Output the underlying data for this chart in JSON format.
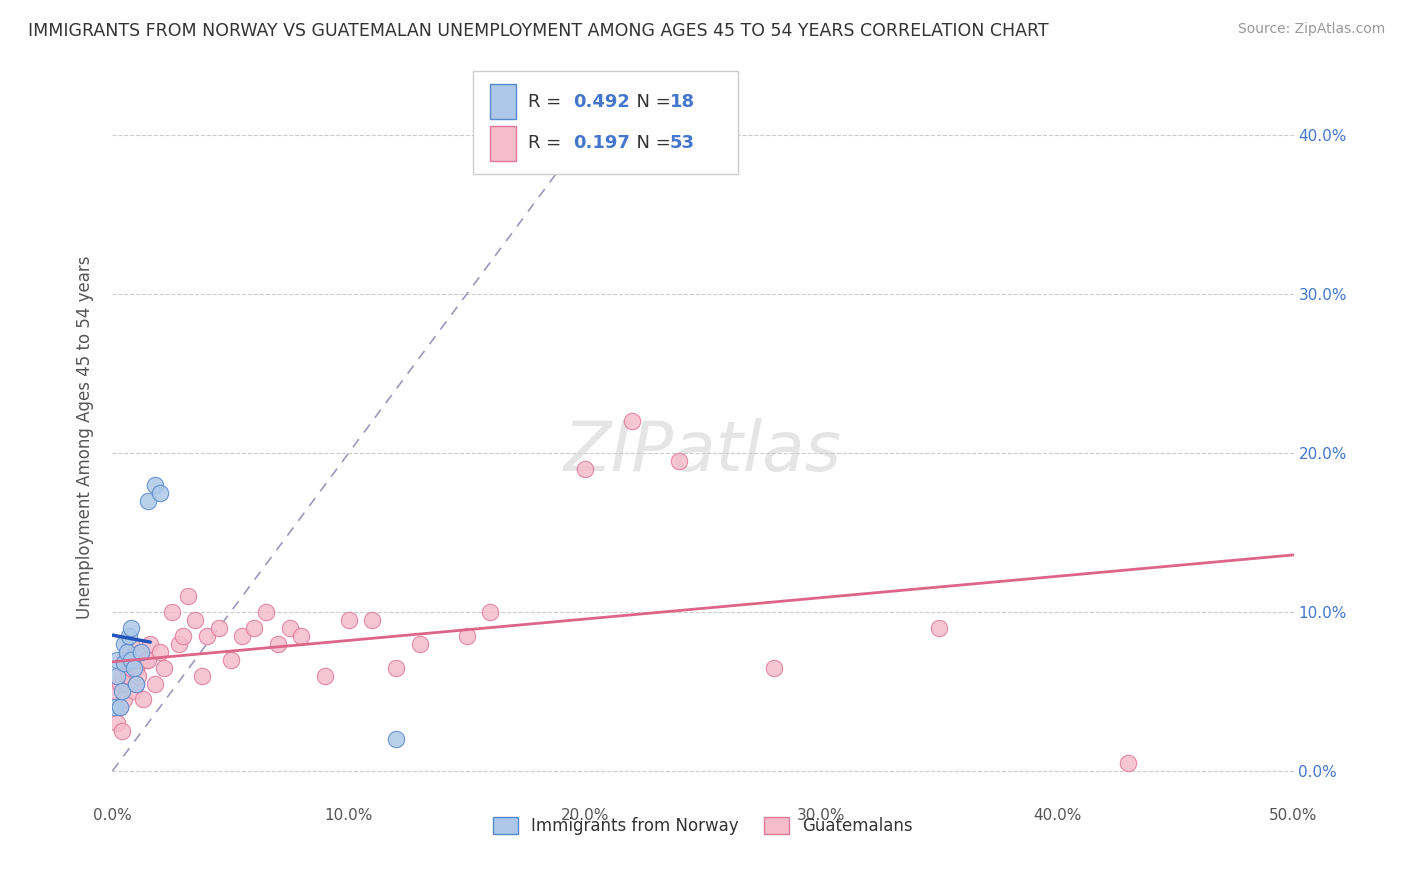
{
  "title": "IMMIGRANTS FROM NORWAY VS GUATEMALAN UNEMPLOYMENT AMONG AGES 45 TO 54 YEARS CORRELATION CHART",
  "source": "Source: ZipAtlas.com",
  "ylabel": "Unemployment Among Ages 45 to 54 years",
  "xlim": [
    0.0,
    0.5
  ],
  "ylim": [
    -0.02,
    0.44
  ],
  "xticks": [
    0.0,
    0.1,
    0.2,
    0.3,
    0.4,
    0.5
  ],
  "xtick_labels": [
    "0.0%",
    "10.0%",
    "20.0%",
    "30.0%",
    "40.0%",
    "50.0%"
  ],
  "yticks": [
    0.0,
    0.1,
    0.2,
    0.3,
    0.4
  ],
  "ytick_labels_right": [
    "0.0%",
    "10.0%",
    "20.0%",
    "30.0%",
    "40.0%"
  ],
  "background_color": "#ffffff",
  "legend_R_norway": "0.492",
  "legend_N_norway": "18",
  "legend_R_guatemalan": "0.197",
  "legend_N_guatemalan": "53",
  "norway_color": "#adc8e8",
  "norway_edge_color": "#5588cc",
  "guatemalan_color": "#f5bccb",
  "guatemalan_edge_color": "#e07898",
  "norway_line_color": "#2255bb",
  "guatemalan_line_color": "#dd6688",
  "diagonal_line_color": "#9999bb",
  "norway_scatter_x": [
    0.001,
    0.002,
    0.002,
    0.003,
    0.004,
    0.005,
    0.005,
    0.006,
    0.007,
    0.008,
    0.008,
    0.009,
    0.01,
    0.012,
    0.015,
    0.018,
    0.02,
    0.12
  ],
  "norway_scatter_y": [
    0.04,
    0.06,
    0.07,
    0.04,
    0.05,
    0.068,
    0.08,
    0.075,
    0.085,
    0.09,
    0.07,
    0.065,
    0.055,
    0.075,
    0.17,
    0.18,
    0.175,
    0.02
  ],
  "guatemalan_scatter_x": [
    0.001,
    0.002,
    0.003,
    0.003,
    0.004,
    0.004,
    0.005,
    0.005,
    0.006,
    0.006,
    0.007,
    0.008,
    0.008,
    0.009,
    0.01,
    0.01,
    0.011,
    0.012,
    0.013,
    0.014,
    0.015,
    0.016,
    0.018,
    0.02,
    0.022,
    0.025,
    0.028,
    0.03,
    0.032,
    0.035,
    0.038,
    0.04,
    0.045,
    0.05,
    0.055,
    0.06,
    0.065,
    0.07,
    0.075,
    0.08,
    0.09,
    0.1,
    0.11,
    0.12,
    0.13,
    0.15,
    0.16,
    0.2,
    0.22,
    0.24,
    0.28,
    0.35,
    0.43
  ],
  "guatemalan_scatter_y": [
    0.05,
    0.03,
    0.04,
    0.055,
    0.025,
    0.06,
    0.045,
    0.07,
    0.055,
    0.065,
    0.06,
    0.065,
    0.08,
    0.05,
    0.065,
    0.055,
    0.06,
    0.075,
    0.045,
    0.07,
    0.07,
    0.08,
    0.055,
    0.075,
    0.065,
    0.1,
    0.08,
    0.085,
    0.11,
    0.095,
    0.06,
    0.085,
    0.09,
    0.07,
    0.085,
    0.09,
    0.1,
    0.08,
    0.09,
    0.085,
    0.06,
    0.095,
    0.095,
    0.065,
    0.08,
    0.085,
    0.1,
    0.19,
    0.22,
    0.195,
    0.065,
    0.09,
    0.005
  ]
}
